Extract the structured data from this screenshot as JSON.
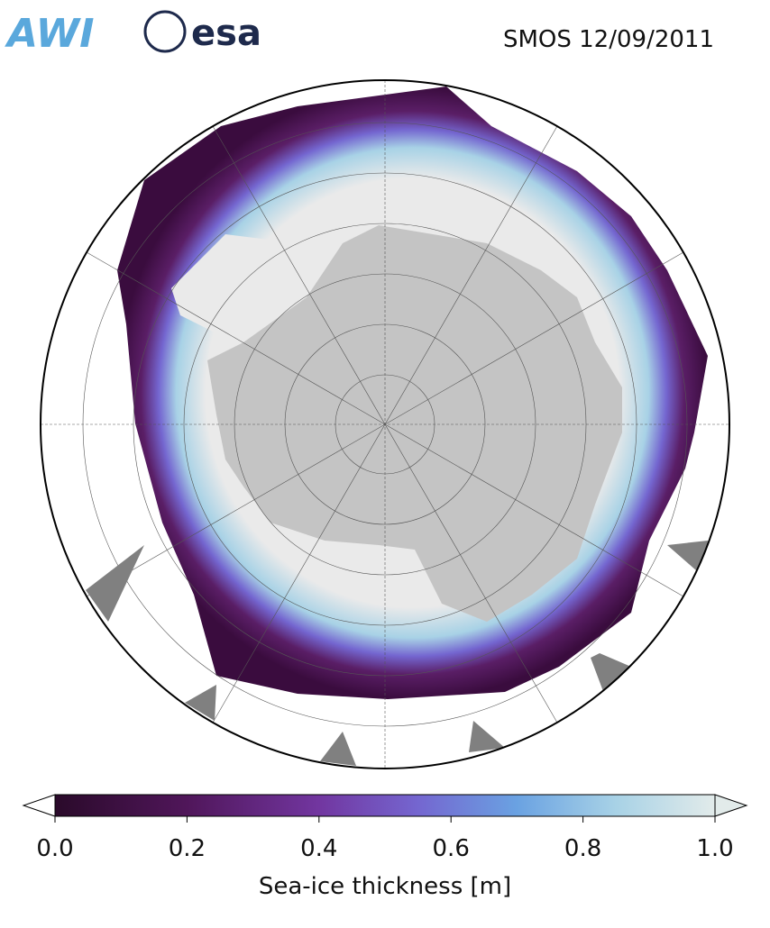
{
  "header": {
    "logos": [
      "AWI",
      "esa"
    ],
    "title": "SMOS 12/09/2011"
  },
  "colorbar": {
    "label": "Sea-ice thickness [m]",
    "lim": [
      0,
      1
    ],
    "ticks": [
      {
        "value": 0,
        "label": "0.0"
      },
      0.2,
      0.4,
      0.6,
      0.8,
      {
        "value": 1,
        "label": "1.0"
      }
    ]
  }
}
